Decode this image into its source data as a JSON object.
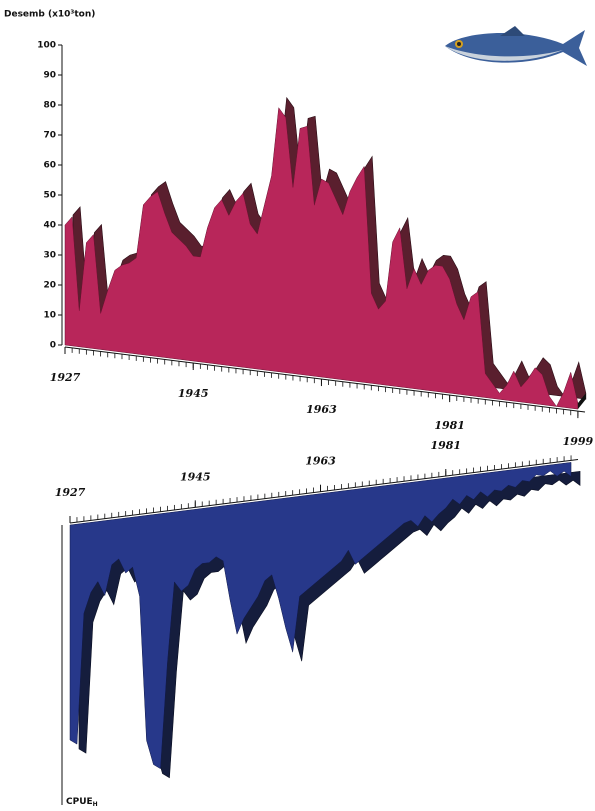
{
  "chart_data": [
    {
      "type": "area3d",
      "y_label": "Desemb (x10³ton)",
      "x": [
        1927,
        1928,
        1929,
        1930,
        1931,
        1932,
        1933,
        1934,
        1935,
        1936,
        1937,
        1938,
        1939,
        1940,
        1941,
        1942,
        1943,
        1944,
        1945,
        1946,
        1947,
        1948,
        1949,
        1950,
        1951,
        1952,
        1953,
        1954,
        1955,
        1956,
        1957,
        1958,
        1959,
        1960,
        1961,
        1962,
        1963,
        1964,
        1965,
        1966,
        1967,
        1968,
        1969,
        1970,
        1971,
        1972,
        1973,
        1974,
        1975,
        1976,
        1977,
        1978,
        1979,
        1980,
        1981,
        1982,
        1983,
        1984,
        1985,
        1986,
        1987,
        1988,
        1989,
        1990,
        1991,
        1992,
        1993,
        1994,
        1995,
        1996,
        1997,
        1998,
        1999
      ],
      "values": [
        40,
        43,
        12,
        35,
        38,
        12,
        20,
        27,
        29,
        30,
        32,
        50,
        53,
        55,
        48,
        42,
        40,
        38,
        35,
        35,
        45,
        52,
        55,
        50,
        55,
        58,
        48,
        45,
        55,
        65,
        88,
        85,
        62,
        82,
        83,
        57,
        66,
        65,
        60,
        55,
        63,
        68,
        72,
        30,
        25,
        28,
        48,
        53,
        33,
        40,
        35,
        40,
        42,
        42,
        38,
        30,
        25,
        33,
        35,
        8,
        5,
        2,
        5,
        10,
        5,
        8,
        12,
        10,
        3,
        0,
        5,
        12,
        2
      ],
      "color": "#b8265a",
      "side_color": "#5a1f2e",
      "xlim": [
        1927,
        2000
      ],
      "xticks": [
        1927,
        1945,
        1963,
        1981,
        1999
      ],
      "ylim": [
        0,
        100
      ],
      "yticks": [
        0,
        10,
        20,
        30,
        40,
        50,
        60,
        70,
        80,
        90,
        100
      ]
    },
    {
      "type": "area3d-inverted",
      "y_label": "CPUE",
      "y_label_sub": "H",
      "x": [
        1927,
        1928,
        1929,
        1930,
        1931,
        1932,
        1933,
        1934,
        1935,
        1936,
        1937,
        1938,
        1939,
        1940,
        1941,
        1942,
        1943,
        1944,
        1945,
        1946,
        1947,
        1948,
        1949,
        1950,
        1951,
        1952,
        1953,
        1954,
        1955,
        1956,
        1957,
        1958,
        1959,
        1960,
        1961,
        1962,
        1963,
        1964,
        1965,
        1966,
        1967,
        1968,
        1969,
        1970,
        1971,
        1972,
        1973,
        1974,
        1975,
        1976,
        1977,
        1978,
        1979,
        1980,
        1981,
        1982,
        1983,
        1984,
        1985,
        1986,
        1987,
        1988,
        1989,
        1990,
        1991,
        1992,
        1993,
        1994,
        1995,
        1996,
        1997,
        1998,
        1999
      ],
      "values": [
        215,
        220,
        90,
        70,
        60,
        75,
        45,
        40,
        55,
        50,
        80,
        225,
        250,
        255,
        150,
        70,
        80,
        75,
        60,
        55,
        55,
        50,
        55,
        95,
        130,
        115,
        105,
        95,
        80,
        75,
        100,
        130,
        155,
        100,
        95,
        90,
        85,
        80,
        75,
        70,
        60,
        75,
        70,
        65,
        60,
        55,
        50,
        45,
        40,
        38,
        45,
        35,
        42,
        35,
        30,
        22,
        28,
        20,
        25,
        18,
        24,
        18,
        20,
        15,
        18,
        12,
        14,
        8,
        10,
        6,
        12,
        8,
        14
      ],
      "color": "#27388a",
      "side_color": "#151d3d",
      "xlim": [
        1927,
        2000
      ],
      "xticks": [
        1927,
        1945,
        1963,
        1981
      ],
      "ylim": [
        0,
        280
      ]
    }
  ]
}
